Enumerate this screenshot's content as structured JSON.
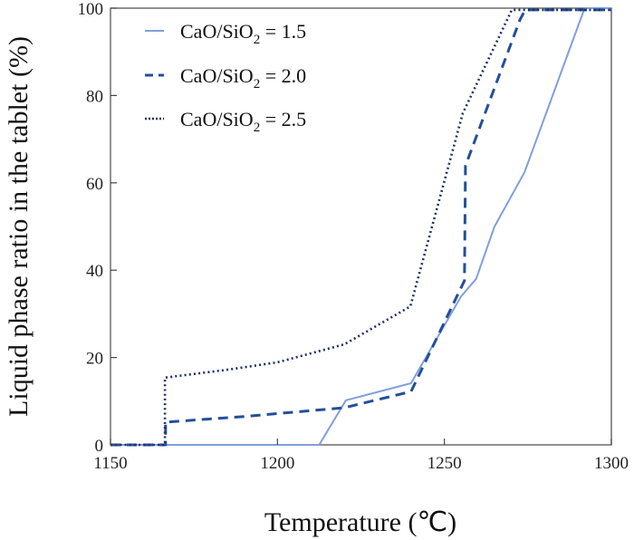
{
  "chart_data": {
    "type": "line",
    "title": "",
    "xlabel": "Temperature (℃)",
    "ylabel": "Liquid phase ratio in the tablet (%)",
    "xlim": [
      1150,
      1300
    ],
    "ylim": [
      0,
      100
    ],
    "xticks": [
      "1150",
      "1200",
      "1250",
      "1300"
    ],
    "yticks": [
      "0",
      "20",
      "40",
      "60",
      "80",
      "100"
    ],
    "xtick_values": [
      1150,
      1200,
      1250,
      1300
    ],
    "ytick_values": [
      0,
      20,
      40,
      60,
      80,
      100
    ],
    "grid": false,
    "legend_position": "top-left",
    "series": [
      {
        "name": "CaO/SiO2 = 1.5",
        "label_main": "CaO/SiO",
        "label_sub": "2",
        "label_tail": " = 1.5",
        "style": "solid",
        "color": "#7f9fdc",
        "points": [
          [
            1150,
            0
          ],
          [
            1212.5,
            0
          ],
          [
            1220.5,
            10.2
          ],
          [
            1240,
            14.1
          ],
          [
            1255,
            34
          ],
          [
            1259.5,
            38
          ],
          [
            1265,
            50
          ],
          [
            1274,
            62.4
          ],
          [
            1292,
            100
          ],
          [
            1300,
            100
          ]
        ]
      },
      {
        "name": "CaO/SiO2 = 2.0",
        "label_main": "CaO/SiO",
        "label_sub": "2",
        "label_tail": " = 2.0",
        "style": "dashed",
        "color": "#234f98",
        "points": [
          [
            1150,
            0
          ],
          [
            1166.5,
            0
          ],
          [
            1166.5,
            5.2
          ],
          [
            1190,
            6.5
          ],
          [
            1220,
            8.5
          ],
          [
            1240,
            12.2
          ],
          [
            1256,
            37.6
          ],
          [
            1256.3,
            63.9
          ],
          [
            1272.6,
            97.3
          ],
          [
            1274.2,
            99.6
          ],
          [
            1300,
            99.6
          ]
        ]
      },
      {
        "name": "CaO/SiO2 = 2.5",
        "label_main": "CaO/SiO",
        "label_sub": "2",
        "label_tail": " = 2.5",
        "style": "dotted",
        "color": "#1d2f66",
        "points": [
          [
            1150,
            0
          ],
          [
            1166.3,
            0
          ],
          [
            1166.3,
            15.4
          ],
          [
            1185,
            17.2
          ],
          [
            1200,
            18.9
          ],
          [
            1220,
            23
          ],
          [
            1239.8,
            31.7
          ],
          [
            1255.5,
            75.9
          ],
          [
            1270.2,
            99.6
          ],
          [
            1300,
            99.6
          ]
        ]
      }
    ]
  }
}
